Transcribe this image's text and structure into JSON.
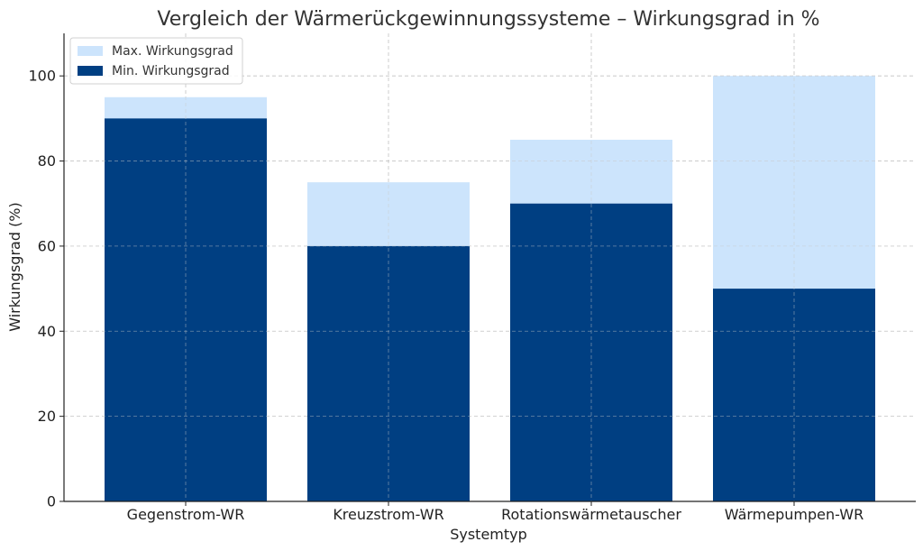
{
  "chart_data": {
    "type": "bar",
    "title": "Vergleich der Wärmerückgewinnungssysteme – Wirkungsgrad in %",
    "xlabel": "Systemtyp",
    "ylabel": "Wirkungsgrad (%)",
    "categories": [
      "Gegenstrom-WR",
      "Kreuzstrom-WR",
      "Rotationswärmetauscher",
      "Wärmepumpen-WR"
    ],
    "series": [
      {
        "name": "Max. Wirkungsgrad",
        "values": [
          95,
          75,
          85,
          100
        ],
        "color": "#cce4fc"
      },
      {
        "name": "Min. Wirkungsgrad",
        "values": [
          90,
          60,
          70,
          50
        ],
        "color": "#003f82"
      }
    ],
    "ylim": [
      0,
      110
    ],
    "yticks": [
      0,
      20,
      40,
      60,
      80,
      100
    ],
    "grid": true,
    "legend_position": "top-left"
  }
}
